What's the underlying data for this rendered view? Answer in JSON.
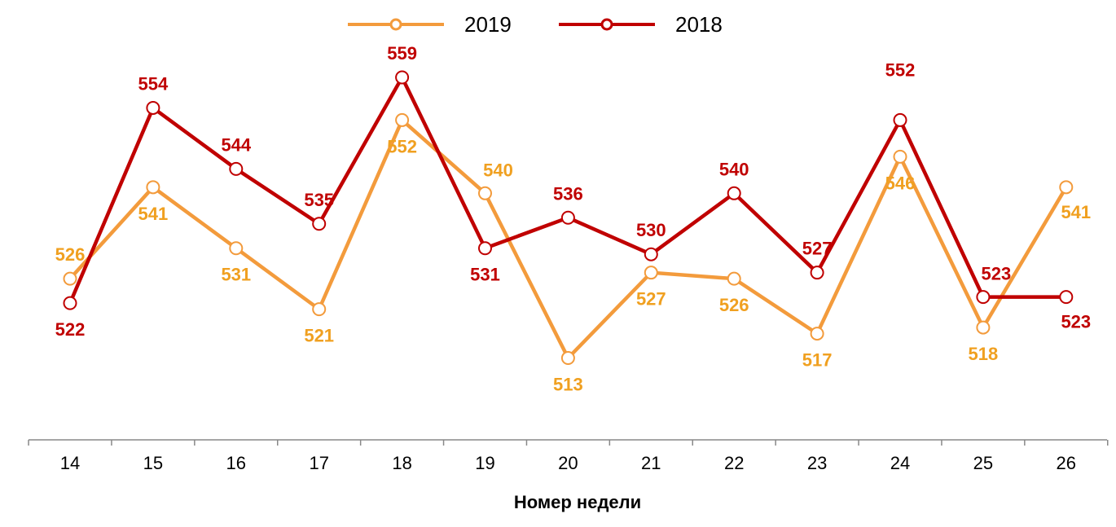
{
  "chart_data": {
    "type": "line",
    "title": "",
    "xlabel": "Номер недели",
    "ylabel": "",
    "x": [
      "14",
      "15",
      "16",
      "17",
      "18",
      "19",
      "20",
      "21",
      "22",
      "23",
      "24",
      "25",
      "26"
    ],
    "ylim": [
      500,
      565
    ],
    "grid": false,
    "legend_position": "top-center",
    "series": [
      {
        "name": "2019",
        "color": "#F39B3C",
        "label_color": "#F0A020",
        "values": [
          526,
          541,
          531,
          521,
          552,
          540,
          513,
          527,
          526,
          517,
          546,
          518,
          541
        ],
        "label_pos": [
          "above",
          "below",
          "below",
          "below",
          "below",
          "above-right",
          "below",
          "below",
          "below",
          "below",
          "below",
          "below",
          "below-right"
        ]
      },
      {
        "name": "2018",
        "color": "#C00000",
        "label_color": "#C00000",
        "values": [
          522,
          554,
          544,
          535,
          559,
          531,
          536,
          530,
          540,
          527,
          552,
          523,
          523
        ],
        "label_pos": [
          "below",
          "above",
          "above",
          "above",
          "above",
          "below",
          "above",
          "above",
          "above",
          "above",
          "above-high",
          "above-right",
          "below-right"
        ]
      }
    ]
  }
}
